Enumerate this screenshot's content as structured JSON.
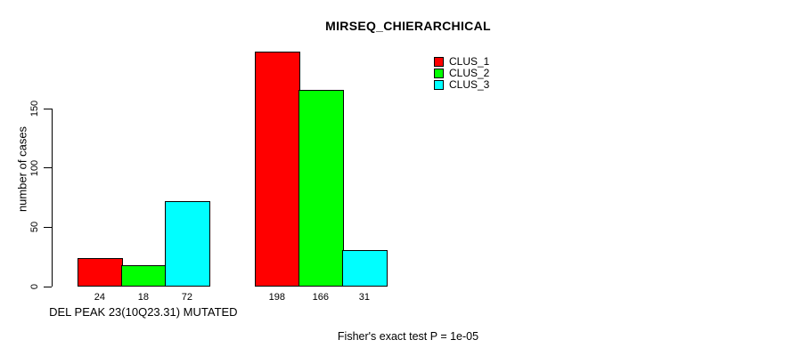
{
  "chart_data": {
    "type": "bar",
    "title": "MIRSEQ_CHIERARCHICAL",
    "ylabel": "number of cases",
    "xlabel": "",
    "yticks": [
      0,
      50,
      100,
      150
    ],
    "ylim": [
      0,
      150
    ],
    "grid": false,
    "bar_value_labels_shown": true,
    "categories": [
      "DEL PEAK 23(10Q23.31) MUTATED",
      ""
    ],
    "series": [
      {
        "name": "CLUS_1",
        "color": "#ff0000",
        "values": [
          24,
          198
        ]
      },
      {
        "name": "CLUS_2",
        "color": "#00ff00",
        "values": [
          18,
          166
        ]
      },
      {
        "name": "CLUS_3",
        "color": "#00ffff",
        "values": [
          72,
          31
        ]
      }
    ],
    "legend_position": "top-right",
    "annotation": "Fisher's exact test P = 1e-05"
  }
}
